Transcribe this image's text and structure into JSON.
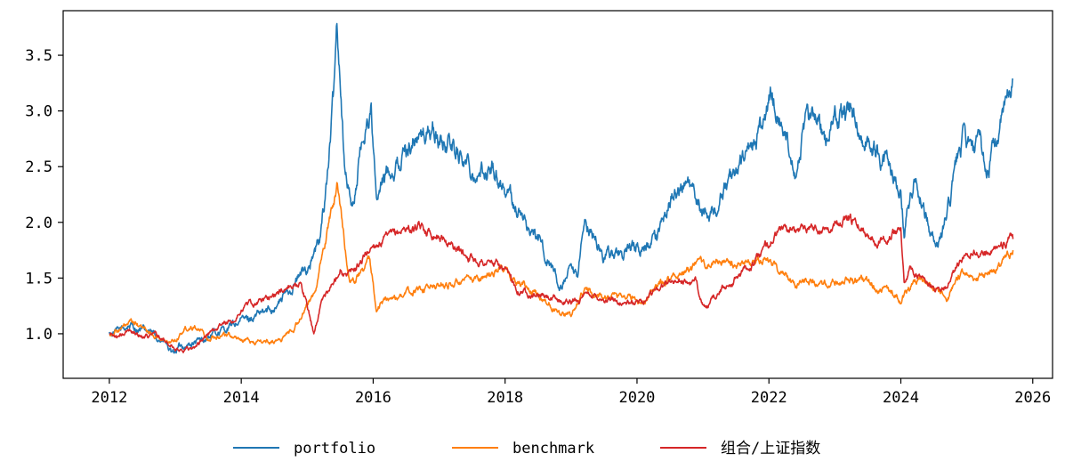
{
  "chart_data": {
    "type": "line",
    "title": "",
    "xlabel": "",
    "ylabel": "",
    "xlim": [
      2011.3,
      2026.3
    ],
    "ylim": [
      0.6,
      3.9
    ],
    "grid": false,
    "legend_position": "bottom-center",
    "x_ticks": [
      2012,
      2014,
      2016,
      2018,
      2020,
      2022,
      2024,
      2026
    ],
    "x_tick_labels": [
      "2012",
      "2014",
      "2016",
      "2018",
      "2020",
      "2022",
      "2024",
      "2026"
    ],
    "y_ticks": [
      1.0,
      1.5,
      2.0,
      2.5,
      3.0,
      3.5
    ],
    "y_tick_labels": [
      "1.0",
      "1.5",
      "2.0",
      "2.5",
      "3.0",
      "3.5"
    ],
    "series": [
      {
        "name": "portfolio",
        "color": "#1f77b4",
        "points": [
          [
            2012.0,
            1.0
          ],
          [
            2012.15,
            1.02
          ],
          [
            2012.3,
            1.08
          ],
          [
            2012.5,
            1.03
          ],
          [
            2012.7,
            0.98
          ],
          [
            2012.85,
            0.92
          ],
          [
            2012.95,
            0.8
          ],
          [
            2013.05,
            0.88
          ],
          [
            2013.2,
            0.9
          ],
          [
            2013.4,
            0.93
          ],
          [
            2013.6,
            1.0
          ],
          [
            2013.8,
            1.05
          ],
          [
            2014.0,
            1.12
          ],
          [
            2014.2,
            1.15
          ],
          [
            2014.4,
            1.2
          ],
          [
            2014.6,
            1.3
          ],
          [
            2014.8,
            1.45
          ],
          [
            2015.0,
            1.6
          ],
          [
            2015.1,
            1.7
          ],
          [
            2015.2,
            1.85
          ],
          [
            2015.3,
            2.4
          ],
          [
            2015.4,
            3.1
          ],
          [
            2015.45,
            3.8
          ],
          [
            2015.5,
            3.35
          ],
          [
            2015.55,
            2.7
          ],
          [
            2015.6,
            2.35
          ],
          [
            2015.7,
            2.15
          ],
          [
            2015.8,
            2.6
          ],
          [
            2015.9,
            2.9
          ],
          [
            2015.97,
            3.0
          ],
          [
            2016.05,
            2.15
          ],
          [
            2016.2,
            2.45
          ],
          [
            2016.4,
            2.55
          ],
          [
            2016.6,
            2.75
          ],
          [
            2016.8,
            2.78
          ],
          [
            2016.9,
            2.85
          ],
          [
            2017.0,
            2.72
          ],
          [
            2017.2,
            2.7
          ],
          [
            2017.4,
            2.55
          ],
          [
            2017.6,
            2.42
          ],
          [
            2017.8,
            2.5
          ],
          [
            2017.9,
            2.4
          ],
          [
            2018.1,
            2.2
          ],
          [
            2018.3,
            2.0
          ],
          [
            2018.5,
            1.85
          ],
          [
            2018.7,
            1.6
          ],
          [
            2018.85,
            1.4
          ],
          [
            2019.0,
            1.55
          ],
          [
            2019.1,
            1.45
          ],
          [
            2019.2,
            2.05
          ],
          [
            2019.35,
            1.85
          ],
          [
            2019.5,
            1.7
          ],
          [
            2019.7,
            1.72
          ],
          [
            2019.9,
            1.75
          ],
          [
            2020.1,
            1.75
          ],
          [
            2020.3,
            1.85
          ],
          [
            2020.5,
            2.2
          ],
          [
            2020.7,
            2.35
          ],
          [
            2020.85,
            2.25
          ],
          [
            2021.0,
            2.05
          ],
          [
            2021.2,
            2.15
          ],
          [
            2021.4,
            2.35
          ],
          [
            2021.6,
            2.55
          ],
          [
            2021.8,
            2.75
          ],
          [
            2021.95,
            2.95
          ],
          [
            2022.05,
            3.15
          ],
          [
            2022.15,
            2.95
          ],
          [
            2022.3,
            2.75
          ],
          [
            2022.4,
            2.5
          ],
          [
            2022.55,
            2.85
          ],
          [
            2022.7,
            3.0
          ],
          [
            2022.85,
            2.7
          ],
          [
            2023.0,
            2.9
          ],
          [
            2023.15,
            3.0
          ],
          [
            2023.3,
            2.95
          ],
          [
            2023.45,
            2.75
          ],
          [
            2023.6,
            2.65
          ],
          [
            2023.75,
            2.55
          ],
          [
            2023.9,
            2.45
          ],
          [
            2024.0,
            2.3
          ],
          [
            2024.05,
            1.95
          ],
          [
            2024.1,
            2.1
          ],
          [
            2024.2,
            2.4
          ],
          [
            2024.3,
            2.25
          ],
          [
            2024.45,
            1.9
          ],
          [
            2024.6,
            1.82
          ],
          [
            2024.75,
            2.2
          ],
          [
            2024.85,
            2.55
          ],
          [
            2024.95,
            2.75
          ],
          [
            2025.1,
            2.6
          ],
          [
            2025.2,
            2.7
          ],
          [
            2025.3,
            2.45
          ],
          [
            2025.45,
            2.75
          ],
          [
            2025.6,
            3.05
          ],
          [
            2025.7,
            3.28
          ]
        ]
      },
      {
        "name": "benchmark",
        "color": "#ff7f0e",
        "points": [
          [
            2012.0,
            1.0
          ],
          [
            2012.2,
            1.05
          ],
          [
            2012.35,
            1.1
          ],
          [
            2012.5,
            1.05
          ],
          [
            2012.7,
            0.98
          ],
          [
            2012.9,
            0.92
          ],
          [
            2013.0,
            0.95
          ],
          [
            2013.15,
            1.05
          ],
          [
            2013.3,
            1.08
          ],
          [
            2013.5,
            0.95
          ],
          [
            2013.7,
            1.0
          ],
          [
            2013.9,
            0.98
          ],
          [
            2014.0,
            0.95
          ],
          [
            2014.2,
            0.92
          ],
          [
            2014.4,
            0.93
          ],
          [
            2014.6,
            0.95
          ],
          [
            2014.8,
            1.05
          ],
          [
            2015.0,
            1.25
          ],
          [
            2015.15,
            1.45
          ],
          [
            2015.3,
            1.9
          ],
          [
            2015.45,
            2.35
          ],
          [
            2015.55,
            1.9
          ],
          [
            2015.65,
            1.45
          ],
          [
            2015.8,
            1.55
          ],
          [
            2015.95,
            1.65
          ],
          [
            2016.05,
            1.25
          ],
          [
            2016.3,
            1.32
          ],
          [
            2016.6,
            1.38
          ],
          [
            2016.9,
            1.42
          ],
          [
            2017.2,
            1.45
          ],
          [
            2017.5,
            1.47
          ],
          [
            2017.8,
            1.55
          ],
          [
            2017.95,
            1.6
          ],
          [
            2018.1,
            1.5
          ],
          [
            2018.3,
            1.42
          ],
          [
            2018.6,
            1.3
          ],
          [
            2018.85,
            1.2
          ],
          [
            2019.0,
            1.15
          ],
          [
            2019.2,
            1.4
          ],
          [
            2019.5,
            1.32
          ],
          [
            2019.8,
            1.35
          ],
          [
            2020.1,
            1.28
          ],
          [
            2020.3,
            1.42
          ],
          [
            2020.5,
            1.5
          ],
          [
            2020.7,
            1.55
          ],
          [
            2020.9,
            1.6
          ],
          [
            2021.1,
            1.62
          ],
          [
            2021.3,
            1.65
          ],
          [
            2021.5,
            1.6
          ],
          [
            2021.7,
            1.65
          ],
          [
            2021.95,
            1.67
          ],
          [
            2022.2,
            1.55
          ],
          [
            2022.4,
            1.45
          ],
          [
            2022.6,
            1.5
          ],
          [
            2022.8,
            1.42
          ],
          [
            2023.0,
            1.45
          ],
          [
            2023.2,
            1.5
          ],
          [
            2023.5,
            1.45
          ],
          [
            2023.75,
            1.4
          ],
          [
            2024.0,
            1.3
          ],
          [
            2024.1,
            1.4
          ],
          [
            2024.3,
            1.48
          ],
          [
            2024.5,
            1.4
          ],
          [
            2024.7,
            1.3
          ],
          [
            2024.8,
            1.45
          ],
          [
            2024.95,
            1.55
          ],
          [
            2025.1,
            1.5
          ],
          [
            2025.3,
            1.55
          ],
          [
            2025.5,
            1.6
          ],
          [
            2025.7,
            1.75
          ]
        ]
      },
      {
        "name": "组合/上证指数",
        "color": "#d62728",
        "points": [
          [
            2012.0,
            1.0
          ],
          [
            2012.15,
            0.97
          ],
          [
            2012.3,
            1.03
          ],
          [
            2012.5,
            0.98
          ],
          [
            2012.7,
            1.0
          ],
          [
            2012.9,
            0.9
          ],
          [
            2013.05,
            0.85
          ],
          [
            2013.3,
            0.88
          ],
          [
            2013.5,
            1.0
          ],
          [
            2013.7,
            1.08
          ],
          [
            2013.9,
            1.12
          ],
          [
            2014.05,
            1.25
          ],
          [
            2014.2,
            1.28
          ],
          [
            2014.5,
            1.35
          ],
          [
            2014.7,
            1.42
          ],
          [
            2014.9,
            1.45
          ],
          [
            2015.0,
            1.25
          ],
          [
            2015.1,
            1.0
          ],
          [
            2015.25,
            1.35
          ],
          [
            2015.4,
            1.45
          ],
          [
            2015.5,
            1.6
          ],
          [
            2015.6,
            1.5
          ],
          [
            2015.75,
            1.6
          ],
          [
            2015.9,
            1.72
          ],
          [
            2016.0,
            1.8
          ],
          [
            2016.3,
            1.88
          ],
          [
            2016.5,
            1.95
          ],
          [
            2016.8,
            1.93
          ],
          [
            2017.0,
            1.88
          ],
          [
            2017.3,
            1.75
          ],
          [
            2017.6,
            1.65
          ],
          [
            2017.9,
            1.62
          ],
          [
            2018.0,
            1.55
          ],
          [
            2018.2,
            1.4
          ],
          [
            2018.5,
            1.35
          ],
          [
            2018.8,
            1.3
          ],
          [
            2019.0,
            1.28
          ],
          [
            2019.3,
            1.35
          ],
          [
            2019.6,
            1.3
          ],
          [
            2019.9,
            1.27
          ],
          [
            2020.1,
            1.3
          ],
          [
            2020.3,
            1.42
          ],
          [
            2020.6,
            1.48
          ],
          [
            2020.9,
            1.45
          ],
          [
            2021.05,
            1.2
          ],
          [
            2021.2,
            1.35
          ],
          [
            2021.4,
            1.45
          ],
          [
            2021.6,
            1.55
          ],
          [
            2021.8,
            1.65
          ],
          [
            2022.0,
            1.82
          ],
          [
            2022.2,
            1.95
          ],
          [
            2022.4,
            1.9
          ],
          [
            2022.6,
            1.98
          ],
          [
            2022.8,
            1.92
          ],
          [
            2023.0,
            1.98
          ],
          [
            2023.2,
            2.02
          ],
          [
            2023.4,
            1.95
          ],
          [
            2023.6,
            1.85
          ],
          [
            2023.8,
            1.88
          ],
          [
            2024.0,
            1.95
          ],
          [
            2024.05,
            1.45
          ],
          [
            2024.15,
            1.6
          ],
          [
            2024.3,
            1.5
          ],
          [
            2024.5,
            1.42
          ],
          [
            2024.7,
            1.42
          ],
          [
            2024.85,
            1.6
          ],
          [
            2025.0,
            1.75
          ],
          [
            2025.2,
            1.72
          ],
          [
            2025.4,
            1.78
          ],
          [
            2025.6,
            1.82
          ],
          [
            2025.7,
            1.85
          ]
        ]
      }
    ]
  }
}
